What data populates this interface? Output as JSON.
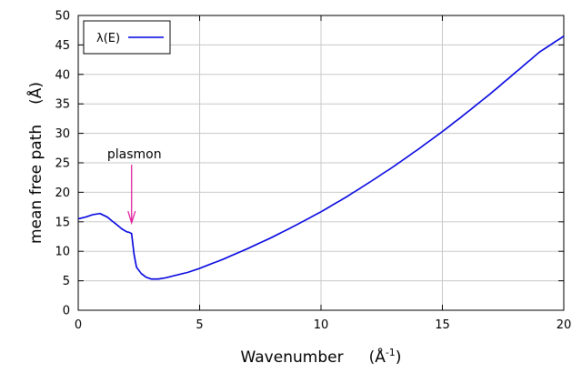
{
  "chart_data": {
    "type": "line",
    "xlabel": "Wavenumber",
    "xunit_base": "(Å",
    "xunit_sup": "-1",
    "xunit_close": ")",
    "ylabel": "mean free path",
    "yunit": "(Å)",
    "xlim": [
      0,
      20
    ],
    "ylim": [
      0,
      50
    ],
    "xticks": [
      0,
      5,
      10,
      15,
      20
    ],
    "yticks": [
      0,
      5,
      10,
      15,
      20,
      25,
      30,
      35,
      40,
      45,
      50
    ],
    "grid": true,
    "legend": {
      "position": "top-left",
      "entries": [
        "λ(E)"
      ]
    },
    "series": [
      {
        "name": "λ(E)",
        "color": "#0000e0",
        "x": [
          0,
          0.3,
          0.6,
          0.9,
          1.2,
          1.5,
          1.8,
          2.0,
          2.1,
          2.2,
          2.3,
          2.4,
          2.6,
          2.8,
          3.0,
          3.3,
          3.6,
          4.0,
          4.5,
          5.0,
          6.0,
          7.0,
          8.0,
          9.0,
          10.0,
          11.0,
          12.0,
          13.0,
          14.0,
          15.0,
          16.0,
          17.0,
          18.0,
          19.0,
          20.0
        ],
        "y": [
          15.5,
          15.8,
          16.2,
          16.4,
          15.8,
          14.8,
          13.8,
          13.3,
          13.2,
          13.0,
          9.5,
          7.3,
          6.2,
          5.6,
          5.3,
          5.3,
          5.5,
          5.9,
          6.4,
          7.1,
          8.7,
          10.5,
          12.4,
          14.5,
          16.7,
          19.1,
          21.7,
          24.4,
          27.3,
          30.3,
          33.5,
          36.8,
          40.3,
          43.8,
          46.5
        ]
      }
    ],
    "annotations": [
      {
        "text": "plasmon",
        "x": 2.2,
        "y": 14.8,
        "color": "#e0209a"
      }
    ]
  }
}
